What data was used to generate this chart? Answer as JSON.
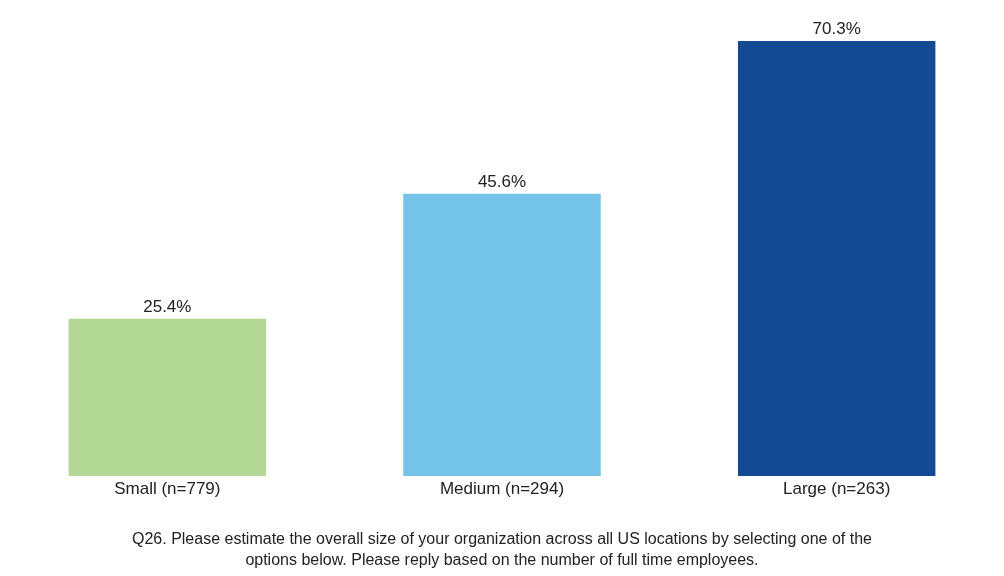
{
  "chart_data": {
    "type": "bar",
    "categories": [
      "Small (n=779)",
      "Medium (n=294)",
      "Large (n=263)"
    ],
    "values": [
      25.4,
      45.6,
      70.3
    ],
    "value_labels": [
      "25.4%",
      "45.6%",
      "70.3%"
    ],
    "colors": [
      "#b3d794",
      "#74c5e9",
      "#124a94"
    ],
    "annotations": [
      "Q26. Please estimate the overall size of your organization across all US locations by selecting one of the options below. Please reply based on the number of full time employees."
    ],
    "data_labels": false
  }
}
